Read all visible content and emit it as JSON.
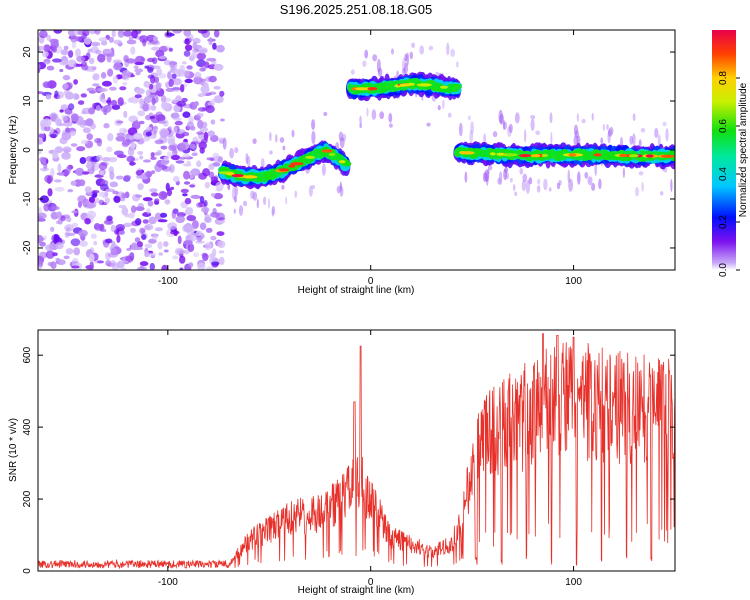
{
  "title": "S196.2025.251.08.18.G05",
  "chart_data": [
    {
      "type": "heatmap",
      "name": "spectrogram",
      "xlabel": "Height of straight line (km)",
      "ylabel": "Frequency (Hz)",
      "xlim": [
        -164,
        150
      ],
      "ylim": [
        -24.5,
        24.5
      ],
      "xticks": [
        -100,
        0,
        100
      ],
      "yticks": [
        -20,
        -10,
        0,
        10,
        20
      ],
      "colorbar": {
        "label": "Normalized spectral amplitude",
        "range": [
          0,
          1
        ],
        "ticks": [
          0.0,
          0.2,
          0.4,
          0.6,
          0.8
        ],
        "tick_labels": [
          "0.0",
          "0.2",
          "0.4",
          "0.6",
          "0.8"
        ]
      },
      "segments": [
        {
          "x_start": -164,
          "x_end": -73,
          "kind": "noise",
          "freq_hz": null
        },
        {
          "x_start": -73,
          "x_end": -12,
          "kind": "tone",
          "freq_hz": [
            -4.5,
            -5.5,
            -5.5,
            -4,
            -2,
            0,
            -3
          ]
        },
        {
          "x_start": -10,
          "x_end": 43,
          "kind": "tone",
          "freq_hz": [
            12.5,
            12.5,
            13,
            13.5,
            13,
            12.5
          ]
        },
        {
          "x_start": 43,
          "x_end": 150,
          "kind": "tone",
          "freq_hz": [
            -0.5,
            -0.8,
            -1.2,
            -1,
            -1,
            -1.2,
            -1.3
          ]
        }
      ]
    },
    {
      "type": "line",
      "name": "snr",
      "xlabel": "Height of straight line (km)",
      "ylabel": "SNR (10 * v/v)",
      "xlim": [
        -164,
        150
      ],
      "ylim": [
        0,
        670
      ],
      "xticks": [
        -100,
        0,
        100
      ],
      "yticks": [
        0,
        200,
        400,
        600
      ],
      "color": "#e8302a",
      "envelope": {
        "x": [
          -164,
          -70,
          -60,
          -40,
          -25,
          -15,
          -5,
          5,
          10,
          20,
          30,
          40,
          45,
          50,
          55,
          60,
          70,
          80,
          90,
          100,
          110,
          120,
          130,
          150
        ],
        "y": [
          15,
          20,
          100,
          170,
          190,
          230,
          300,
          170,
          110,
          90,
          60,
          90,
          180,
          320,
          430,
          460,
          480,
          520,
          560,
          560,
          550,
          540,
          530,
          520
        ]
      },
      "peaks": [
        {
          "x": -5,
          "y": 625
        },
        {
          "x": -8,
          "y": 470
        },
        {
          "x": 85,
          "y": 660
        },
        {
          "x": 92,
          "y": 655
        },
        {
          "x": 100,
          "y": 650
        }
      ]
    }
  ]
}
